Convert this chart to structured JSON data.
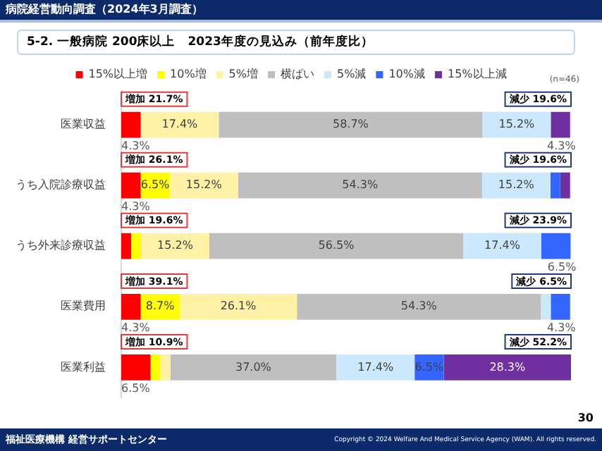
{
  "chart_data": {
    "type": "bar",
    "orientation": "horizontal",
    "stacked": true,
    "title": "病院経営動向調査（2024年3月調査）",
    "subtitle": "5-2.  一般病院 200床以上　2023年度の見込み（前年度比）",
    "categories": [
      "医業収益",
      "うち入院診療収益",
      "うち外来診療収益",
      "医業費用",
      "医業利益"
    ],
    "series": [
      {
        "name": "15%以上増",
        "color": "#ff0000",
        "values": [
          4.3,
          4.3,
          2.2,
          4.3,
          6.5
        ],
        "value_labels": [
          "4.3%",
          "4.3%",
          null,
          "4.3%",
          "6.5%"
        ]
      },
      {
        "name": "10%増",
        "color": "#ffff00",
        "values": [
          0,
          6.5,
          2.2,
          8.7,
          2.2
        ],
        "value_labels": [
          null,
          "6.5%",
          null,
          "8.7%",
          null
        ]
      },
      {
        "name": "5%増",
        "color": "#fff2a6",
        "values": [
          17.4,
          15.2,
          15.2,
          26.1,
          2.2
        ],
        "value_labels": [
          "17.4%",
          "15.2%",
          "15.2%",
          "26.1%",
          null
        ]
      },
      {
        "name": "横ばい",
        "color": "#bfbfbf",
        "values": [
          58.7,
          54.3,
          56.5,
          54.3,
          37.0
        ],
        "value_labels": [
          "58.7%",
          "54.3%",
          "56.5%",
          "54.3%",
          "37.0%"
        ]
      },
      {
        "name": "5%減",
        "color": "#cce8ff",
        "values": [
          15.2,
          15.2,
          17.4,
          2.2,
          17.4
        ],
        "value_labels": [
          "15.2%",
          "15.2%",
          "17.4%",
          null,
          "17.4%"
        ]
      },
      {
        "name": "10%減",
        "color": "#3366ff",
        "values": [
          0,
          2.2,
          6.5,
          4.3,
          6.5
        ],
        "value_labels": [
          null,
          null,
          "6.5%",
          "4.3%",
          "6.5%"
        ]
      },
      {
        "name": "15%以上減",
        "color": "#7030a0",
        "values": [
          4.3,
          2.2,
          0,
          0,
          28.3
        ],
        "value_labels": [
          "4.3%",
          null,
          null,
          null,
          "28.3%"
        ]
      }
    ],
    "legend": "top",
    "grid": false,
    "annotations": [
      "(n=46)",
      "福祉医療機構 経営サポートセンター",
      "Copyright © 2024 Welfare And Medical Service Agency (WAM). All rights reserved.",
      "30",
      "増加 21.7%",
      "減少 19.6%",
      "増加 26.1%",
      "減少 19.6%",
      "増加 19.6%",
      "減少 23.9%",
      "増加 39.1%",
      "減少 6.5%",
      "増加 10.9%",
      "減少 52.2%"
    ]
  }
}
